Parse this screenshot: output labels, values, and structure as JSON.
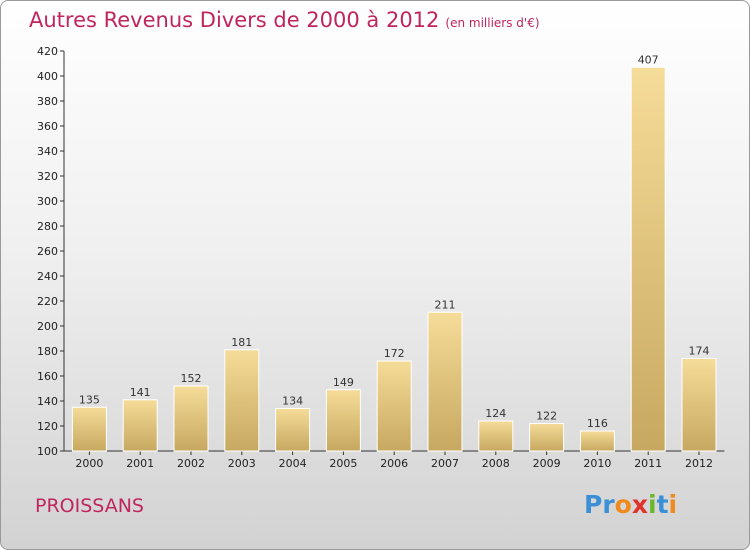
{
  "header": {
    "title": "Autres Revenus Divers de 2000 à 2012",
    "subtitle": "(en milliers d'€)"
  },
  "footer": {
    "commune": "PROISSANS",
    "brand_letters": [
      {
        "char": "P",
        "color": "#3b8fd6"
      },
      {
        "char": "r",
        "color": "#3b8fd6"
      },
      {
        "char": "o",
        "color": "#f08a1c"
      },
      {
        "char": "x",
        "color": "#e0332a"
      },
      {
        "char": "i",
        "color": "#6ab82e"
      },
      {
        "char": "t",
        "color": "#3b8fd6"
      },
      {
        "char": "i",
        "color": "#f08a1c"
      }
    ]
  },
  "colors": {
    "title": "#c0265e",
    "bar_top": "#f5dc98",
    "bar_bottom": "#c7a860",
    "bar_edge": "#ffffff"
  },
  "chart_data": {
    "type": "bar",
    "title": "Autres Revenus Divers de 2000 à 2012",
    "subtitle": "(en milliers d'€)",
    "categories": [
      "2000",
      "2001",
      "2002",
      "2003",
      "2004",
      "2005",
      "2006",
      "2007",
      "2008",
      "2009",
      "2010",
      "2011",
      "2012"
    ],
    "values": [
      135,
      141,
      152,
      181,
      134,
      149,
      172,
      211,
      124,
      122,
      116,
      407,
      174
    ],
    "ylim": [
      100,
      420
    ],
    "yticks": [
      100,
      120,
      140,
      160,
      180,
      200,
      220,
      240,
      260,
      280,
      300,
      320,
      340,
      360,
      380,
      400,
      420
    ],
    "grid": false,
    "xlabel": "",
    "ylabel": ""
  }
}
